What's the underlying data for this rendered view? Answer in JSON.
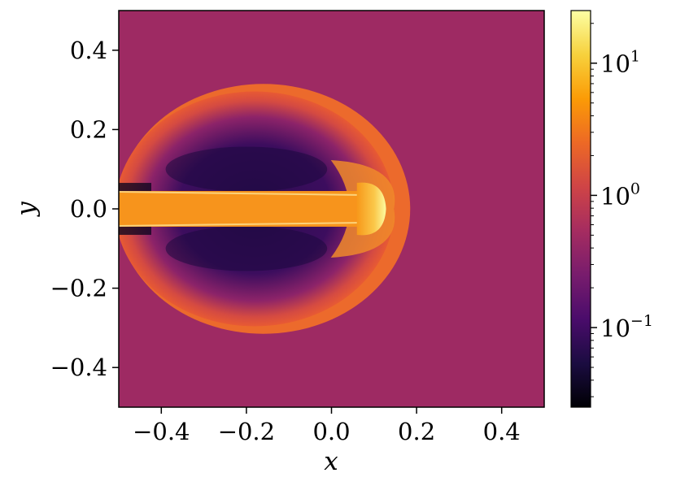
{
  "chart_data": {
    "type": "heatmap",
    "title": "",
    "xlabel": "x",
    "ylabel": "y",
    "xlim": [
      -0.5,
      0.5
    ],
    "ylim": [
      -0.5,
      0.5
    ],
    "xticks": [
      -0.4,
      -0.2,
      0.0,
      0.2,
      0.4
    ],
    "yticks": [
      -0.4,
      -0.2,
      0.0,
      0.2,
      0.4
    ],
    "xtick_labels": [
      "−0.4",
      "−0.2",
      "0.0",
      "0.2",
      "0.4"
    ],
    "ytick_labels": [
      "−0.4",
      "−0.2",
      "0.0",
      "0.2",
      "0.4"
    ],
    "grid": false,
    "colormap": "inferno",
    "color_scale": "log",
    "colorbar": {
      "range": [
        0.025,
        25
      ],
      "ticks": [
        0.1,
        1,
        10
      ],
      "tick_base": "10",
      "tick_exponents": [
        "−1",
        "0",
        "1"
      ]
    },
    "features": {
      "ambient_value": 1.0,
      "cocoon": {
        "center_x": -0.16,
        "center_y": 0.0,
        "radius_x": 0.345,
        "radius_y": 0.315,
        "shell_value": 2.0,
        "cavity_value": 0.12
      },
      "jet": {
        "x_start": -0.5,
        "x_end": 0.075,
        "half_width": 0.045,
        "value": 5.0
      },
      "hotspot": {
        "x": 0.09,
        "y": 0.0,
        "value": 25.0
      },
      "bow_shock_edge_x": 0.185
    }
  }
}
